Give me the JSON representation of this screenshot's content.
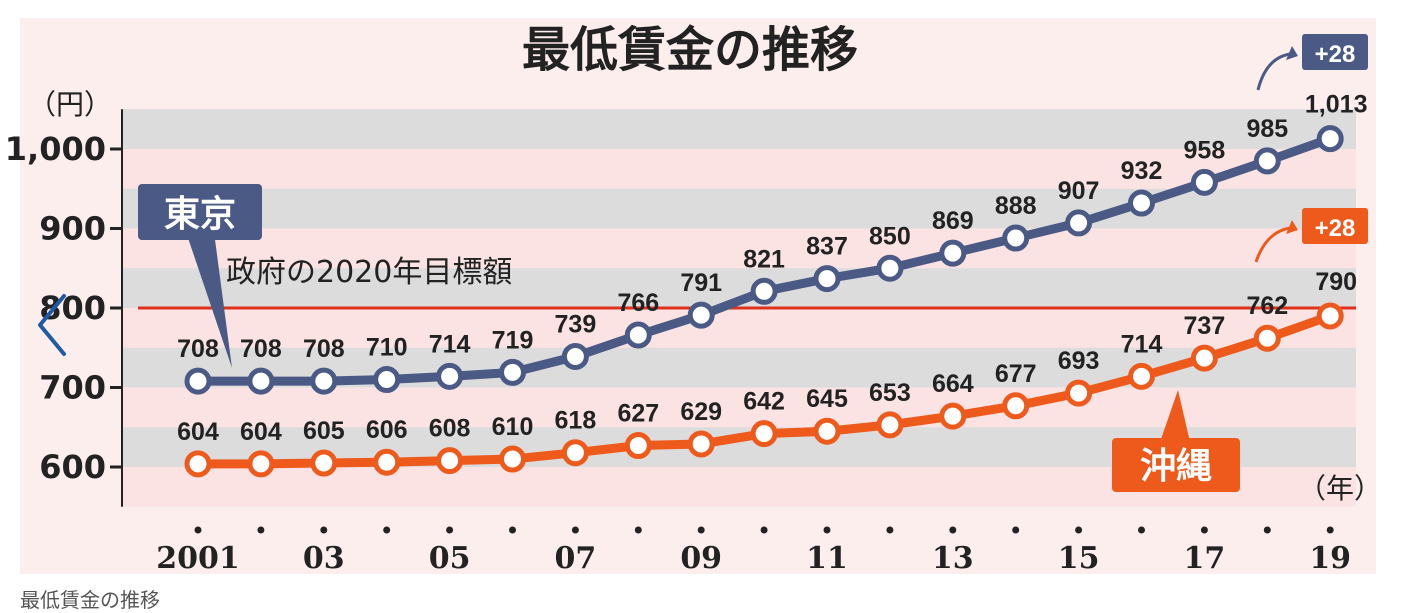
{
  "chart_data": {
    "type": "line",
    "title": "最低賃金の推移",
    "y_unit": "（円）",
    "x_unit": "（年）",
    "ylim": [
      550,
      1050
    ],
    "y_ticks": [
      "600",
      "700",
      "800",
      "900",
      "1,000"
    ],
    "y_tick_values": [
      600,
      700,
      800,
      900,
      1000
    ],
    "years": [
      2001,
      2002,
      2003,
      2004,
      2005,
      2006,
      2007,
      2008,
      2009,
      2010,
      2011,
      2012,
      2013,
      2014,
      2015,
      2016,
      2017,
      2018,
      2019
    ],
    "x_labels": [
      "2001",
      "",
      "03",
      "",
      "05",
      "",
      "07",
      "",
      "09",
      "",
      "11",
      "",
      "13",
      "",
      "15",
      "",
      "17",
      "",
      "19"
    ],
    "grid": "horizontal bands",
    "reference_line": {
      "label": "政府の2020年目標額",
      "value": 800
    },
    "series": [
      {
        "name": "東京",
        "color": "#4a5a85",
        "values": [
          708,
          708,
          708,
          710,
          714,
          719,
          739,
          766,
          791,
          821,
          837,
          850,
          869,
          888,
          907,
          932,
          958,
          985,
          1013
        ],
        "labels": [
          "708",
          "708",
          "708",
          "710",
          "714",
          "719",
          "739",
          "766",
          "791",
          "821",
          "837",
          "850",
          "869",
          "888",
          "907",
          "932",
          "958",
          "985",
          "1,013"
        ],
        "increase": "+28"
      },
      {
        "name": "沖縄",
        "color": "#ee5a1c",
        "values": [
          604,
          604,
          605,
          606,
          608,
          610,
          618,
          627,
          629,
          642,
          645,
          653,
          664,
          677,
          693,
          714,
          737,
          762,
          790
        ],
        "labels": [
          "604",
          "604",
          "605",
          "606",
          "608",
          "610",
          "618",
          "627",
          "629",
          "642",
          "645",
          "653",
          "664",
          "677",
          "693",
          "714",
          "737",
          "762",
          "790"
        ],
        "increase": "+28"
      }
    ]
  },
  "caption": "最低賃金の推移",
  "nav": {
    "prev_icon": "chevron-left-icon"
  }
}
